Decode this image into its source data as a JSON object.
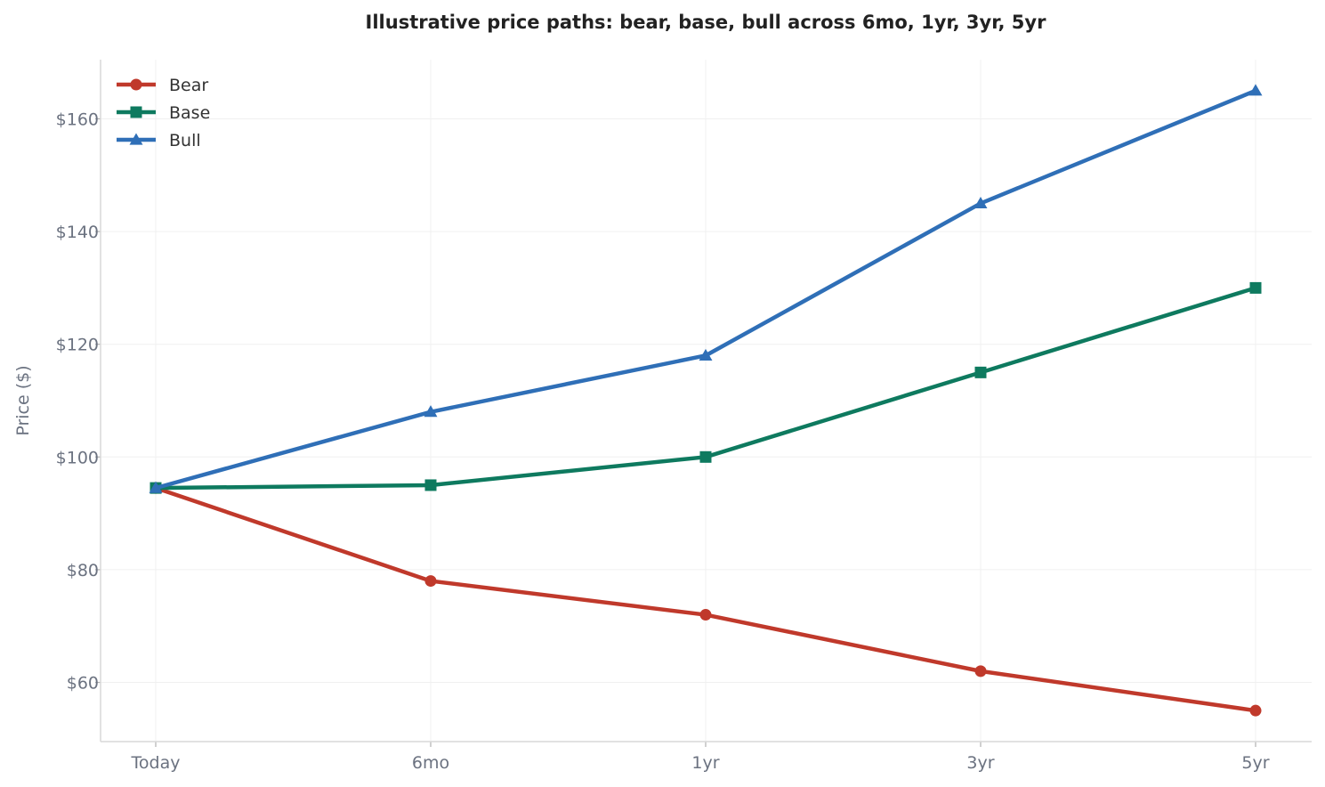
{
  "chart_data": {
    "type": "line",
    "title": "Illustrative price paths: bear, base, bull across 6mo, 1yr, 3yr, 5yr",
    "xlabel": "",
    "ylabel": "Price ($)",
    "categories": [
      "Today",
      "6mo",
      "1yr",
      "3yr",
      "5yr"
    ],
    "y_ticks": [
      60,
      80,
      100,
      120,
      140,
      160
    ],
    "y_tick_labels": [
      "$60",
      "$80",
      "$100",
      "$120",
      "$140",
      "$160"
    ],
    "ylim": [
      49.5,
      170.5
    ],
    "grid": true,
    "legend_position": "top-left",
    "series": [
      {
        "name": "Bear",
        "values": [
          94.5,
          78,
          72,
          62,
          55
        ],
        "color": "#c0392b",
        "marker": "circle"
      },
      {
        "name": "Base",
        "values": [
          94.5,
          95,
          100,
          115,
          130
        ],
        "color": "#0e7a5f",
        "marker": "square"
      },
      {
        "name": "Bull",
        "values": [
          94.5,
          108,
          118,
          145,
          165
        ],
        "color": "#2f6fb7",
        "marker": "triangle"
      }
    ]
  }
}
